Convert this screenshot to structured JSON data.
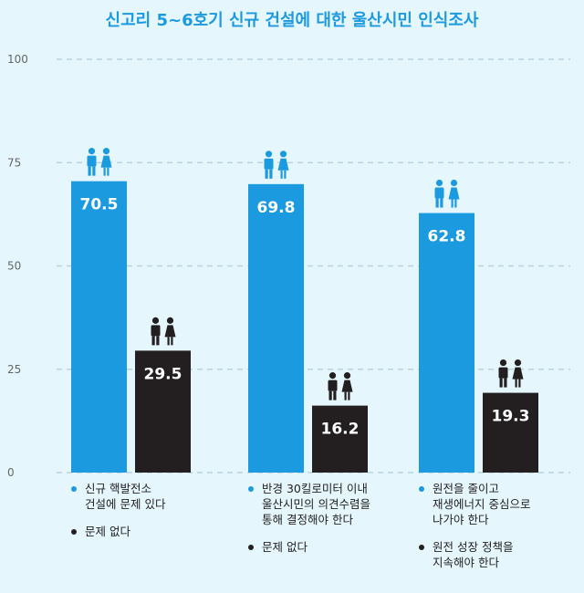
{
  "chart_data": {
    "type": "bar",
    "title": "신고리 5~6호기 신규 건설에 대한 울산시민 인식조사",
    "ylim": [
      0,
      100
    ],
    "yticks": [
      0,
      25,
      50,
      75,
      100
    ],
    "grid": true,
    "groups": [
      {
        "bars": [
          {
            "value": 70.5,
            "label": "70.5",
            "color": "#1b9ae0"
          },
          {
            "value": 29.5,
            "label": "29.5",
            "color": "#231f20"
          }
        ],
        "legend": [
          {
            "lines": [
              "신규 핵발전소",
              "건설에 문제 있다"
            ],
            "color": "#1b9ae0"
          },
          {
            "lines": [
              "문제 없다"
            ],
            "color": "#231f20"
          }
        ]
      },
      {
        "bars": [
          {
            "value": 69.8,
            "label": "69.8",
            "color": "#1b9ae0"
          },
          {
            "value": 16.2,
            "label": "16.2",
            "color": "#231f20"
          }
        ],
        "legend": [
          {
            "lines": [
              "반경 30킬로미터 이내",
              "울산시민의 의견수렴을",
              "통해 결정해야 한다"
            ],
            "color": "#1b9ae0"
          },
          {
            "lines": [
              "문제 없다"
            ],
            "color": "#231f20"
          }
        ]
      },
      {
        "bars": [
          {
            "value": 62.8,
            "label": "62.8",
            "color": "#1b9ae0"
          },
          {
            "value": 19.3,
            "label": "19.3",
            "color": "#231f20"
          }
        ],
        "legend": [
          {
            "lines": [
              "원전을 줄이고",
              "재생에너지 중심으로",
              "나가야 한다"
            ],
            "color": "#1b9ae0"
          },
          {
            "lines": [
              "원전 성장 정책을",
              "지속해야 한다"
            ],
            "color": "#231f20"
          }
        ]
      }
    ]
  },
  "colors": {
    "background": "#e6f6fd",
    "accent": "#1b9ae0",
    "dark": "#231f20",
    "grid": "#b9d3e0"
  },
  "icons": {
    "bar_top": "man-woman-icon"
  }
}
